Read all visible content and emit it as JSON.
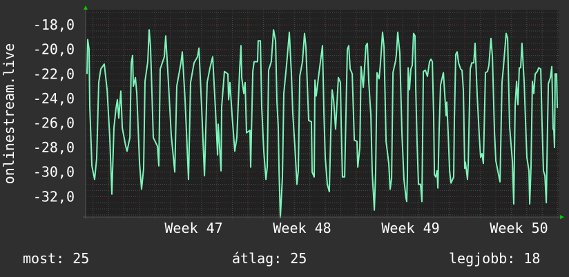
{
  "chart_data": {
    "type": "line",
    "title": "",
    "ylabel": "onlinestream.live",
    "xlabel": "",
    "x_unit": "week",
    "xlim": [
      46.503,
      50.866
    ],
    "ylim": [
      -33.67,
      -16.76
    ],
    "y_ticks": [
      -18,
      -20,
      -22,
      -24,
      -26,
      -28,
      -30,
      -32
    ],
    "y_tick_labels": [
      "-18,0",
      "-20,0",
      "-22,0",
      "-24,0",
      "-26,0",
      "-28,0",
      "-30,0",
      "-32,0"
    ],
    "x_ticks": [
      47.5,
      48.5,
      49.5,
      50.5
    ],
    "x_tick_labels": [
      "Week 47",
      "Week 48",
      "Week 49",
      "Week 50"
    ],
    "grid": true,
    "colors": {
      "background": "#2f2f2f",
      "plot": "#212121",
      "line": "#7df5bb",
      "grid": "#4a4a4a",
      "major_grid": "#6a3a3a",
      "arrow": "#00cc00",
      "text": "#ffffff"
    },
    "series": [
      {
        "points": [
          [
            46.516,
            -22.0
          ],
          [
            46.522,
            -19.2
          ],
          [
            46.535,
            -20.0
          ],
          [
            46.541,
            -24.6
          ],
          [
            46.561,
            -29.5
          ],
          [
            46.586,
            -30.6
          ],
          [
            46.605,
            -28.9
          ],
          [
            46.624,
            -22.7
          ],
          [
            46.643,
            -21.6
          ],
          [
            46.675,
            -21.2
          ],
          [
            46.701,
            -23.3
          ],
          [
            46.726,
            -27.2
          ],
          [
            46.745,
            -31.8
          ],
          [
            46.764,
            -26.4
          ],
          [
            46.783,
            -24.8
          ],
          [
            46.796,
            -24.1
          ],
          [
            46.809,
            -25.6
          ],
          [
            46.828,
            -23.4
          ],
          [
            46.841,
            -26.4
          ],
          [
            46.873,
            -27.9
          ],
          [
            46.885,
            -28.3
          ],
          [
            46.911,
            -27.2
          ],
          [
            46.924,
            -21.1
          ],
          [
            46.936,
            -20.5
          ],
          [
            46.943,
            -23.0
          ],
          [
            46.962,
            -22.3
          ],
          [
            46.975,
            -23.6
          ],
          [
            47.0,
            -29.2
          ],
          [
            47.019,
            -31.4
          ],
          [
            47.038,
            -29.7
          ],
          [
            47.051,
            -22.6
          ],
          [
            47.076,
            -21.0
          ],
          [
            47.089,
            -18.4
          ],
          [
            47.102,
            -19.8
          ],
          [
            47.127,
            -27.2
          ],
          [
            47.166,
            -27.9
          ],
          [
            47.178,
            -29.5
          ],
          [
            47.191,
            -21.6
          ],
          [
            47.229,
            -20.6
          ],
          [
            47.242,
            -18.9
          ],
          [
            47.267,
            -22.7
          ],
          [
            47.293,
            -27.0
          ],
          [
            47.325,
            -30.0
          ],
          [
            47.344,
            -23.0
          ],
          [
            47.382,
            -21.1
          ],
          [
            47.395,
            -20.2
          ],
          [
            47.42,
            -24.1
          ],
          [
            47.452,
            -30.6
          ],
          [
            47.471,
            -22.7
          ],
          [
            47.503,
            -21.1
          ],
          [
            47.535,
            -20.6
          ],
          [
            47.548,
            -19.9
          ],
          [
            47.573,
            -24.7
          ],
          [
            47.599,
            -30.3
          ],
          [
            47.624,
            -22.7
          ],
          [
            47.65,
            -21.5
          ],
          [
            47.675,
            -20.6
          ],
          [
            47.701,
            -25.0
          ],
          [
            47.72,
            -28.6
          ],
          [
            47.726,
            -26.1
          ],
          [
            47.752,
            -29.9
          ],
          [
            47.758,
            -24.7
          ],
          [
            47.783,
            -21.8
          ],
          [
            47.815,
            -22.0
          ],
          [
            47.822,
            -24.1
          ],
          [
            47.834,
            -22.7
          ],
          [
            47.853,
            -25.3
          ],
          [
            47.879,
            -28.3
          ],
          [
            47.898,
            -27.2
          ],
          [
            47.924,
            -21.6
          ],
          [
            47.936,
            -19.7
          ],
          [
            47.943,
            -22.3
          ],
          [
            47.962,
            -23.6
          ],
          [
            47.974,
            -22.7
          ],
          [
            47.987,
            -26.8
          ],
          [
            48.019,
            -26.6
          ],
          [
            48.025,
            -29.6
          ],
          [
            48.045,
            -21.8
          ],
          [
            48.057,
            -21.0
          ],
          [
            48.089,
            -21.0
          ],
          [
            48.095,
            -19.3
          ],
          [
            48.115,
            -19.3
          ],
          [
            48.127,
            -24.7
          ],
          [
            48.146,
            -28.3
          ],
          [
            48.166,
            -30.6
          ],
          [
            48.178,
            -29.6
          ],
          [
            48.191,
            -21.7
          ],
          [
            48.216,
            -21.0
          ],
          [
            48.236,
            -18.4
          ],
          [
            48.255,
            -19.3
          ],
          [
            48.267,
            -24.2
          ],
          [
            48.28,
            -26.4
          ],
          [
            48.287,
            -29.9
          ],
          [
            48.299,
            -33.7
          ],
          [
            48.318,
            -30.4
          ],
          [
            48.331,
            -23.6
          ],
          [
            48.357,
            -21.2
          ],
          [
            48.382,
            -18.6
          ],
          [
            48.401,
            -22.0
          ],
          [
            48.414,
            -25.2
          ],
          [
            48.433,
            -27.9
          ],
          [
            48.452,
            -31.0
          ],
          [
            48.465,
            -29.9
          ],
          [
            48.478,
            -22.2
          ],
          [
            48.503,
            -21.0
          ],
          [
            48.522,
            -18.7
          ],
          [
            48.535,
            -19.8
          ],
          [
            48.56,
            -25.8
          ],
          [
            48.586,
            -25.9
          ],
          [
            48.592,
            -30.0
          ],
          [
            48.611,
            -30.4
          ],
          [
            48.618,
            -22.5
          ],
          [
            48.63,
            -23.8
          ],
          [
            48.656,
            -21.9
          ],
          [
            48.688,
            -19.7
          ],
          [
            48.701,
            -25.2
          ],
          [
            48.713,
            -28.8
          ],
          [
            48.732,
            -31.0
          ],
          [
            48.751,
            -31.6
          ],
          [
            48.764,
            -26.8
          ],
          [
            48.777,
            -23.3
          ],
          [
            48.79,
            -24.1
          ],
          [
            48.809,
            -26.5
          ],
          [
            48.834,
            -22.3
          ],
          [
            48.853,
            -22.7
          ],
          [
            48.86,
            -26.1
          ],
          [
            48.872,
            -30.4
          ],
          [
            48.892,
            -30.4
          ],
          [
            48.904,
            -25.3
          ],
          [
            48.917,
            -20.0
          ],
          [
            48.93,
            -19.7
          ],
          [
            48.943,
            -21.6
          ],
          [
            48.962,
            -22.0
          ],
          [
            48.981,
            -27.4
          ],
          [
            49.006,
            -27.5
          ],
          [
            49.013,
            -29.6
          ],
          [
            49.032,
            -28.0
          ],
          [
            49.044,
            -21.4
          ],
          [
            49.064,
            -23.1
          ],
          [
            49.089,
            -19.7
          ],
          [
            49.102,
            -19.5
          ],
          [
            49.115,
            -22.7
          ],
          [
            49.134,
            -25.4
          ],
          [
            49.146,
            -30.0
          ],
          [
            49.166,
            -33.1
          ],
          [
            49.178,
            -30.0
          ],
          [
            49.191,
            -21.9
          ],
          [
            49.21,
            -22.4
          ],
          [
            49.223,
            -21.1
          ],
          [
            49.242,
            -18.6
          ],
          [
            49.255,
            -19.8
          ],
          [
            49.274,
            -27.5
          ],
          [
            49.299,
            -29.3
          ],
          [
            49.312,
            -31.4
          ],
          [
            49.325,
            -30.5
          ],
          [
            49.338,
            -21.9
          ],
          [
            49.363,
            -20.9
          ],
          [
            49.369,
            -20.4
          ],
          [
            49.382,
            -18.6
          ],
          [
            49.401,
            -20.3
          ],
          [
            49.42,
            -26.8
          ],
          [
            49.439,
            -30.6
          ],
          [
            49.458,
            -32.1
          ],
          [
            49.465,
            -32.4
          ],
          [
            49.471,
            -30.2
          ],
          [
            49.478,
            -21.5
          ],
          [
            49.49,
            -23.3
          ],
          [
            49.503,
            -21.6
          ],
          [
            49.516,
            -21.3
          ],
          [
            49.528,
            -18.7
          ],
          [
            49.541,
            -18.9
          ],
          [
            49.548,
            -23.2
          ],
          [
            49.56,
            -27.6
          ],
          [
            49.573,
            -31.0
          ],
          [
            49.592,
            -31.0
          ],
          [
            49.605,
            -32.4
          ],
          [
            49.618,
            -21.8
          ],
          [
            49.637,
            -21.7
          ],
          [
            49.656,
            -22.2
          ],
          [
            49.675,
            -21.0
          ],
          [
            49.688,
            -20.8
          ],
          [
            49.701,
            -21.0
          ],
          [
            49.713,
            -25.4
          ],
          [
            49.72,
            -30.2
          ],
          [
            49.732,
            -30.4
          ],
          [
            49.745,
            -29.9
          ],
          [
            49.752,
            -31.3
          ],
          [
            49.764,
            -26.5
          ],
          [
            49.777,
            -22.9
          ],
          [
            49.803,
            -21.9
          ],
          [
            49.815,
            -23.6
          ],
          [
            49.828,
            -25.4
          ],
          [
            49.834,
            -24.3
          ],
          [
            49.847,
            -26.8
          ],
          [
            49.86,
            -29.9
          ],
          [
            49.873,
            -30.9
          ],
          [
            49.898,
            -30.4
          ],
          [
            49.904,
            -25.8
          ],
          [
            49.917,
            -20.4
          ],
          [
            49.93,
            -20.2
          ],
          [
            49.943,
            -21.1
          ],
          [
            49.962,
            -21.6
          ],
          [
            49.975,
            -21.7
          ],
          [
            49.987,
            -23.3
          ],
          [
            50.0,
            -29.7
          ],
          [
            50.006,
            -29.2
          ],
          [
            50.025,
            -30.6
          ],
          [
            50.032,
            -29.3
          ],
          [
            50.051,
            -21.6
          ],
          [
            50.064,
            -21.1
          ],
          [
            50.083,
            -21.1
          ],
          [
            50.095,
            -19.5
          ],
          [
            50.115,
            -23.8
          ],
          [
            50.134,
            -27.1
          ],
          [
            50.146,
            -28.8
          ],
          [
            50.159,
            -28.5
          ],
          [
            50.172,
            -29.3
          ],
          [
            50.191,
            -21.9
          ],
          [
            50.21,
            -21.8
          ],
          [
            50.223,
            -21.3
          ],
          [
            50.242,
            -19.1
          ],
          [
            50.255,
            -20.6
          ],
          [
            50.274,
            -26.8
          ],
          [
            50.287,
            -29.1
          ],
          [
            50.318,
            -30.5
          ],
          [
            50.325,
            -30.8
          ],
          [
            50.344,
            -22.7
          ],
          [
            50.357,
            -21.4
          ],
          [
            50.382,
            -18.7
          ],
          [
            50.395,
            -19.1
          ],
          [
            50.414,
            -26.3
          ],
          [
            50.439,
            -29.1
          ],
          [
            50.452,
            -32.6
          ],
          [
            50.465,
            -24.6
          ],
          [
            50.478,
            -22.6
          ],
          [
            50.49,
            -24.5
          ],
          [
            50.503,
            -21.5
          ],
          [
            50.516,
            -21.5
          ],
          [
            50.528,
            -19.5
          ],
          [
            50.548,
            -22.7
          ],
          [
            50.56,
            -25.8
          ],
          [
            50.573,
            -28.8
          ],
          [
            50.592,
            -29.9
          ],
          [
            50.599,
            -32.6
          ],
          [
            50.611,
            -29.6
          ],
          [
            50.624,
            -22.6
          ],
          [
            50.637,
            -23.6
          ],
          [
            50.65,
            -22.0
          ],
          [
            50.669,
            -21.8
          ],
          [
            50.682,
            -21.5
          ],
          [
            50.701,
            -21.6
          ],
          [
            50.713,
            -26.1
          ],
          [
            50.726,
            -29.9
          ],
          [
            50.739,
            -30.3
          ],
          [
            50.752,
            -32.5
          ],
          [
            50.764,
            -26.1
          ],
          [
            50.771,
            -22.8
          ],
          [
            50.79,
            -22.3
          ],
          [
            50.803,
            -21.4
          ],
          [
            50.815,
            -26.5
          ],
          [
            50.822,
            -26.6
          ],
          [
            50.828,
            -28.0
          ],
          [
            50.834,
            -22.0
          ],
          [
            50.847,
            -22.0
          ],
          [
            50.854,
            -24.8
          ]
        ]
      }
    ],
    "legend": {
      "current_label": "most: 25",
      "average_label": "átlag: 25",
      "max_label": "legjobb: 18"
    }
  }
}
